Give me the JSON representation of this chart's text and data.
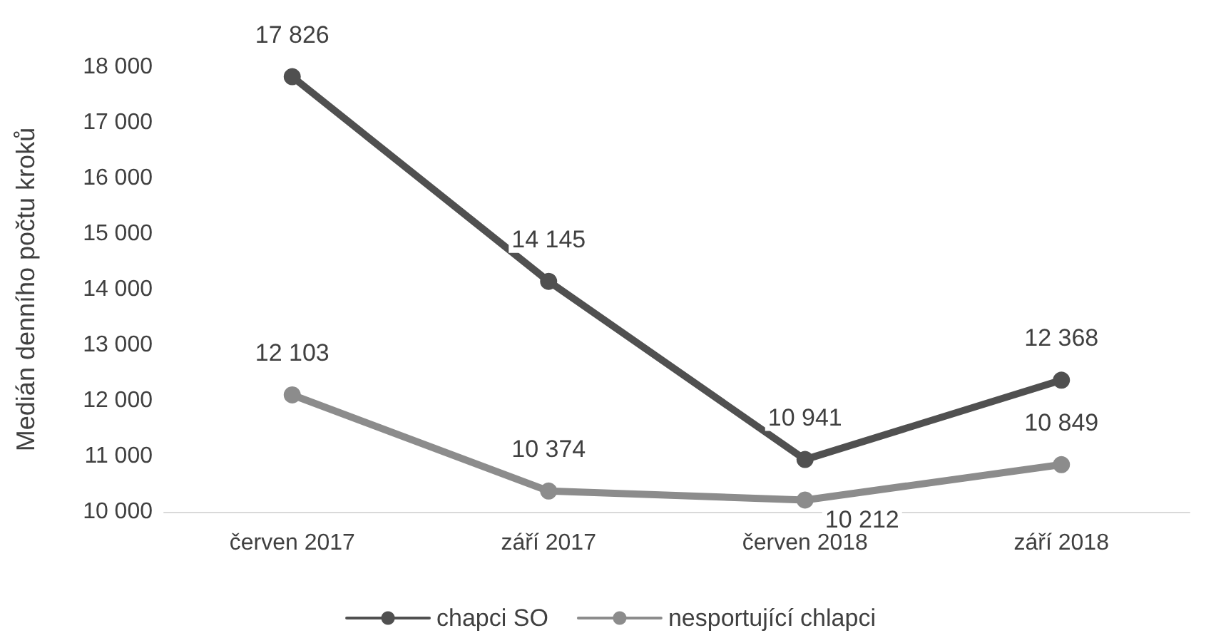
{
  "chart_data": {
    "type": "line",
    "ylabel": "Medián denního počtu kroků",
    "categories": [
      "červen 2017",
      "září 2017",
      "červen 2018",
      "září 2018"
    ],
    "series": [
      {
        "name": "chapci SO",
        "color": "#505050",
        "values": [
          17826,
          14145,
          10941,
          12368
        ],
        "value_labels": [
          "17 826",
          "14 145",
          "10 941",
          "12 368"
        ]
      },
      {
        "name": "nesportující chlapci",
        "color": "#8c8c8c",
        "values": [
          12103,
          10374,
          10212,
          10849
        ],
        "value_labels": [
          "12 103",
          "10 374",
          "10 212",
          "10 849"
        ]
      }
    ],
    "ylim": [
      10000,
      18000
    ],
    "yticks": [
      {
        "value": 10000,
        "label": "10 000"
      },
      {
        "value": 11000,
        "label": "11 000"
      },
      {
        "value": 12000,
        "label": "12 000"
      },
      {
        "value": 13000,
        "label": "13 000"
      },
      {
        "value": 14000,
        "label": "14 000"
      },
      {
        "value": 15000,
        "label": "15 000"
      },
      {
        "value": 16000,
        "label": "16 000"
      },
      {
        "value": 17000,
        "label": "17 000"
      },
      {
        "value": 18000,
        "label": "18 000"
      }
    ],
    "grid": false,
    "legend": "bottom",
    "marker": "circle",
    "line_style": "solid"
  }
}
